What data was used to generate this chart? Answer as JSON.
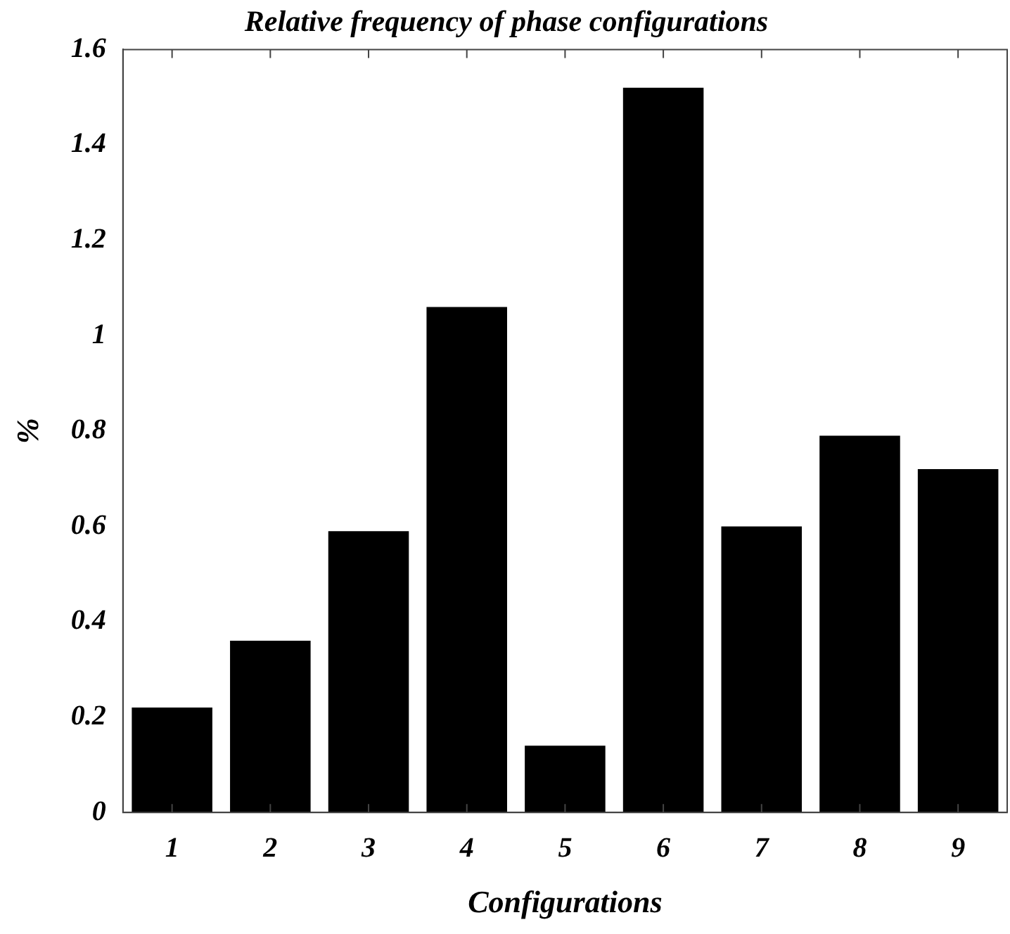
{
  "chart_data": {
    "type": "bar",
    "title": "Relative frequency of phase configurations",
    "xlabel": "Configurations",
    "ylabel": "%",
    "categories": [
      "1",
      "2",
      "3",
      "4",
      "5",
      "6",
      "7",
      "8",
      "9"
    ],
    "values": [
      0.22,
      0.36,
      0.59,
      1.06,
      0.14,
      1.52,
      0.6,
      0.79,
      0.72
    ],
    "color": "#000000",
    "ylim": [
      0,
      1.6
    ],
    "yticks": [
      0,
      0.2,
      0.4,
      0.6,
      0.8,
      1,
      1.2,
      1.4,
      1.6
    ],
    "grid": false,
    "legend": false
  }
}
